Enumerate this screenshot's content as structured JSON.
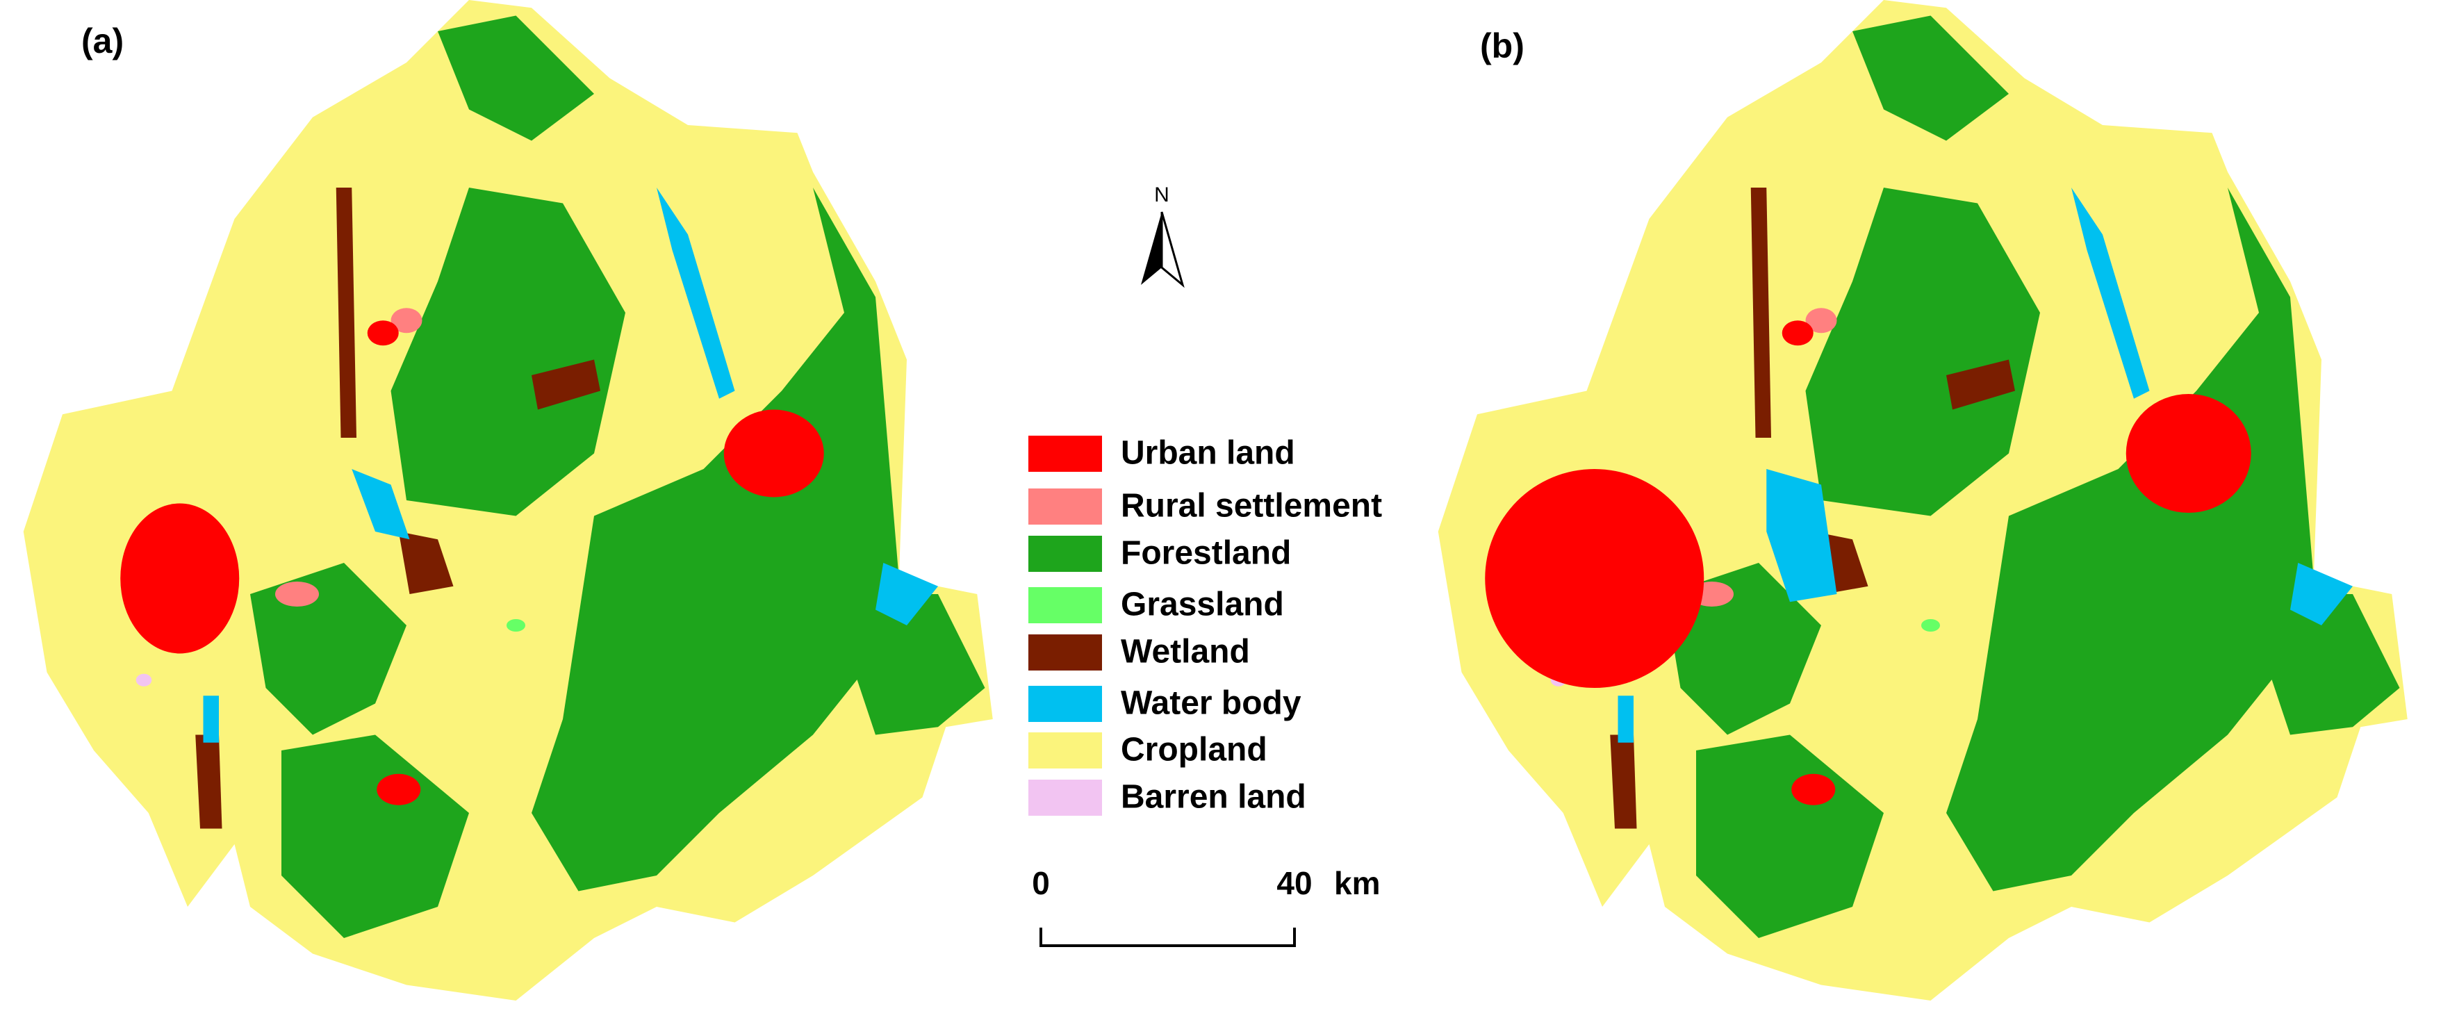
{
  "panels": [
    {
      "label": "(a)"
    },
    {
      "label": "(b)"
    }
  ],
  "north_arrow": {
    "label": "N"
  },
  "legend": {
    "items": [
      {
        "name": "Urban land",
        "color": "#ff0000"
      },
      {
        "name": "Rural settlement",
        "color": "#ff8080"
      },
      {
        "name": "Forestland",
        "color": "#1ea51c"
      },
      {
        "name": "Grassland",
        "color": "#66ff66"
      },
      {
        "name": "Wetland",
        "color": "#7a1e00"
      },
      {
        "name": "Water body",
        "color": "#00c0f0"
      },
      {
        "name": "Cropland",
        "color": "#fbf47c"
      },
      {
        "name": "Barren land",
        "color": "#f2c4f2"
      }
    ]
  },
  "scale_bar": {
    "start": "0",
    "end": "40",
    "unit": "km"
  }
}
